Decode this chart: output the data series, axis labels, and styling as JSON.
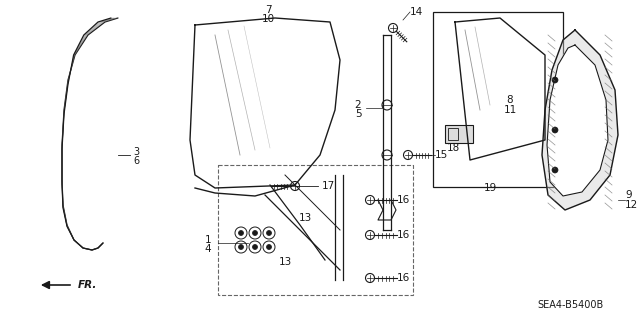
{
  "bg_color": "#ffffff",
  "fig_width": 6.4,
  "fig_height": 3.19,
  "dpi": 100,
  "diagram_ref": "SEA4-B5400B",
  "dark": "#1a1a1a",
  "gray": "#666666",
  "lgray": "#999999"
}
